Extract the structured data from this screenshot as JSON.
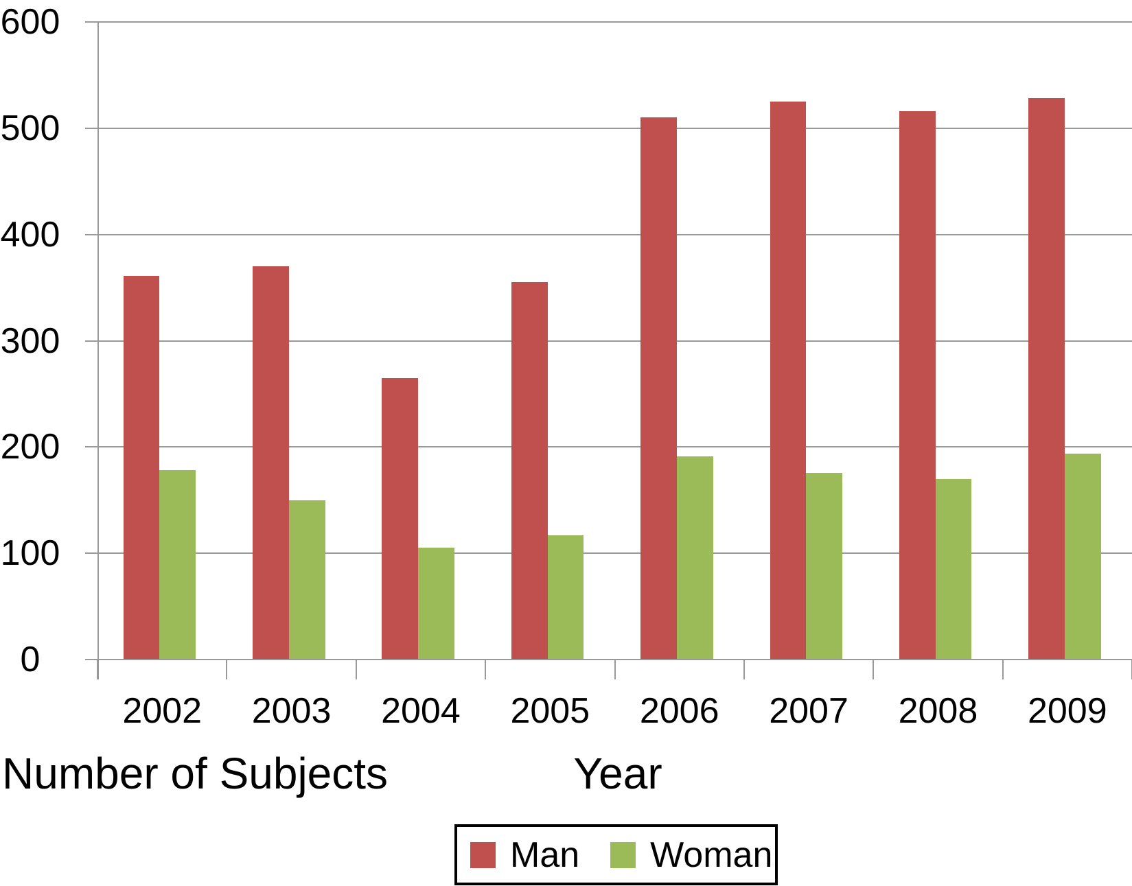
{
  "chart_data": {
    "type": "bar",
    "categories": [
      "2002",
      "2003",
      "2004",
      "2005",
      "2006",
      "2007",
      "2008",
      "2009"
    ],
    "series": [
      {
        "name": "Man",
        "color": "#c0504d",
        "values": [
          361,
          370,
          265,
          355,
          510,
          525,
          516,
          528
        ]
      },
      {
        "name": "Woman",
        "color": "#9bbb59",
        "values": [
          178,
          150,
          105,
          117,
          191,
          176,
          170,
          194
        ]
      }
    ],
    "title": "",
    "xlabel": "Year",
    "ylabel": "Number of Subjects",
    "ylim": [
      0,
      600
    ],
    "yticks": [
      0,
      100,
      200,
      300,
      400,
      500,
      600
    ],
    "grid": true,
    "gridline_color": "#999999",
    "text_color": "#000000",
    "background_color": "#ffffff",
    "legend_position": "bottom"
  },
  "labels": {
    "y_axis_title": "Number of Subjects",
    "x_axis_title": "Year"
  },
  "legend": {
    "items": [
      {
        "label": "Man",
        "color": "#c0504d"
      },
      {
        "label": "Woman",
        "color": "#9bbb59"
      }
    ]
  }
}
